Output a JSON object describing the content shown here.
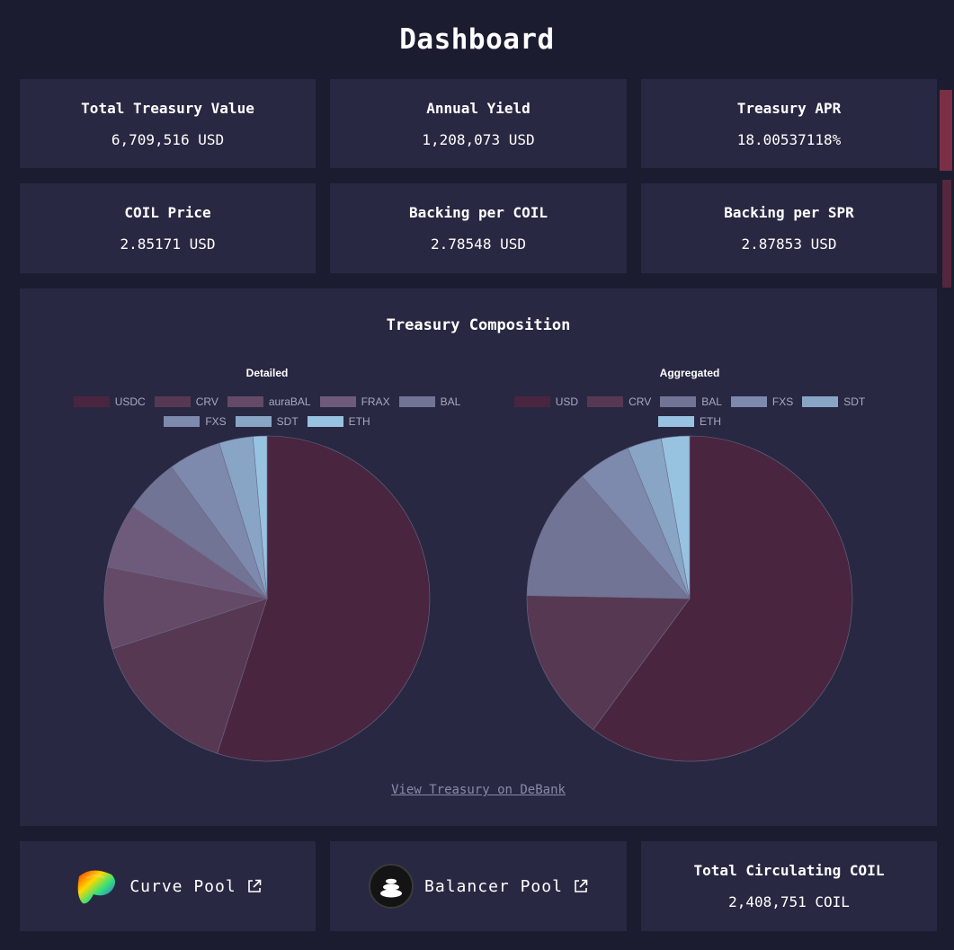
{
  "page": {
    "title": "Dashboard"
  },
  "stats": [
    {
      "label": "Total Treasury Value",
      "value": "6,709,516 USD"
    },
    {
      "label": "Annual Yield",
      "value": "1,208,073 USD"
    },
    {
      "label": "Treasury APR",
      "value": "18.00537118%"
    },
    {
      "label": "COIL Price",
      "value": "2.85171 USD"
    },
    {
      "label": "Backing per COIL",
      "value": "2.78548 USD"
    },
    {
      "label": "Backing per SPR",
      "value": "2.87853 USD"
    }
  ],
  "composition": {
    "title": "Treasury Composition",
    "link_label": "View Treasury on DeBank"
  },
  "chart_data": [
    {
      "type": "pie",
      "title": "Detailed",
      "labels": [
        "USDC",
        "CRV",
        "auraBAL",
        "FRAX",
        "BAL",
        "FXS",
        "SDT",
        "ETH"
      ],
      "values": [
        55.5,
        15.2,
        8.2,
        6.5,
        5.5,
        5.3,
        3.4,
        1.4
      ],
      "colors": [
        "#4a2540",
        "#573853",
        "#644a67",
        "#6e5b7c",
        "#727495",
        "#7d89ad",
        "#88a5c6",
        "#98c3e0"
      ]
    },
    {
      "type": "pie",
      "title": "Aggregated",
      "labels": [
        "USD",
        "CRV",
        "BAL",
        "FXS",
        "SDT",
        "ETH"
      ],
      "values": [
        60.1,
        15.2,
        13.2,
        5.3,
        3.4,
        2.8
      ],
      "colors": [
        "#4a2540",
        "#573853",
        "#727495",
        "#7d89ad",
        "#88a5c6",
        "#98c3e0"
      ]
    }
  ],
  "pools": {
    "curve_label": "Curve Pool",
    "balancer_label": "Balancer Pool"
  },
  "circulating": {
    "label": "Total Circulating COIL",
    "value": "2,408,751 COIL"
  }
}
